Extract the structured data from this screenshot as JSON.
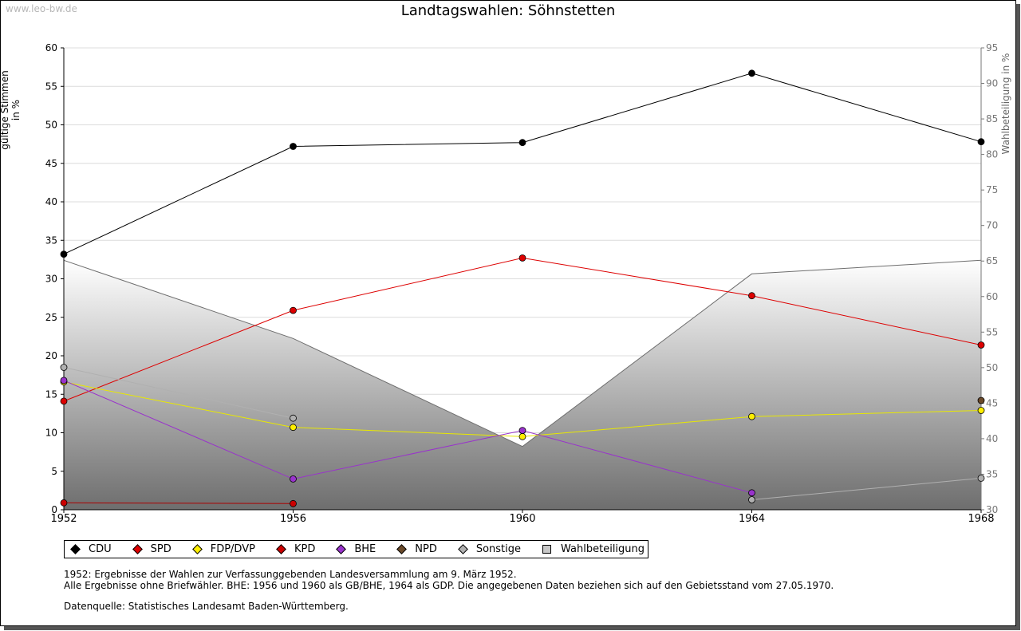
{
  "watermark": "www.leo-bw.de",
  "chart_data": {
    "type": "line",
    "title": "Landtagswahlen: Söhnstetten",
    "ylabel": "gültige Stimmen in %",
    "y2label": "Wahlbeteiligung in %",
    "ylim": [
      0,
      60
    ],
    "y2lim": [
      30,
      95
    ],
    "yticks": [
      "0",
      "5",
      "10",
      "15",
      "20",
      "25",
      "30",
      "35",
      "40",
      "45",
      "50",
      "55",
      "60"
    ],
    "y2ticks": [
      "30",
      "35",
      "40",
      "45",
      "50",
      "55",
      "60",
      "65",
      "70",
      "75",
      "80",
      "85",
      "90",
      "95"
    ],
    "categories": [
      "1952",
      "1956",
      "1960",
      "1964",
      "1968"
    ],
    "x": [
      1952,
      1956,
      1960,
      1964,
      1968
    ],
    "series": [
      {
        "name": "CDU",
        "color": "#000000",
        "line": "#000000",
        "values": [
          33.2,
          47.2,
          47.7,
          56.7,
          47.8
        ]
      },
      {
        "name": "SPD",
        "color": "#dd0000",
        "line": "#dd0000",
        "values": [
          14.1,
          25.9,
          32.7,
          27.8,
          21.4
        ]
      },
      {
        "name": "FDP/DVP",
        "color": "#ffee00",
        "line": "#e8e800",
        "values": [
          16.6,
          10.7,
          9.5,
          12.1,
          12.9
        ]
      },
      {
        "name": "KPD",
        "color": "#cc0000",
        "line": "#aa0000",
        "values": [
          0.9,
          0.8,
          null,
          null,
          null
        ]
      },
      {
        "name": "BHE",
        "color": "#9933cc",
        "line": "#9933cc",
        "values": [
          16.8,
          4.0,
          10.3,
          2.2,
          null
        ]
      },
      {
        "name": "NPD",
        "color": "#6b4a2a",
        "line": "#6b4a2a",
        "values": [
          null,
          null,
          null,
          null,
          14.2
        ]
      },
      {
        "name": "Sonstige",
        "color": "#b0b0b0",
        "line": "#b0b0b0",
        "values": [
          18.5,
          11.9,
          null,
          1.3,
          4.1
        ]
      }
    ],
    "turnout": {
      "name": "Wahlbeteiligung",
      "axis": "right",
      "values": [
        65.1,
        54.1,
        38.9,
        63.2,
        65.1
      ]
    },
    "legend": [
      "CDU",
      "SPD",
      "FDP/DVP",
      "KPD",
      "BHE",
      "NPD",
      "Sonstige",
      "Wahlbeteiligung"
    ]
  },
  "notes": {
    "line1": "1952: Ergebnisse der Wahlen zur Verfassunggebenden Landesversammlung am 9. März 1952.",
    "line2": "Alle Ergebnisse ohne Briefwähler. BHE: 1956 und 1960 als GB/BHE, 1964 als GDP. Die angegebenen Daten beziehen sich auf den Gebietsstand vom 27.05.1970.",
    "source": "Datenquelle: Statistisches Landesamt Baden-Württemberg."
  }
}
